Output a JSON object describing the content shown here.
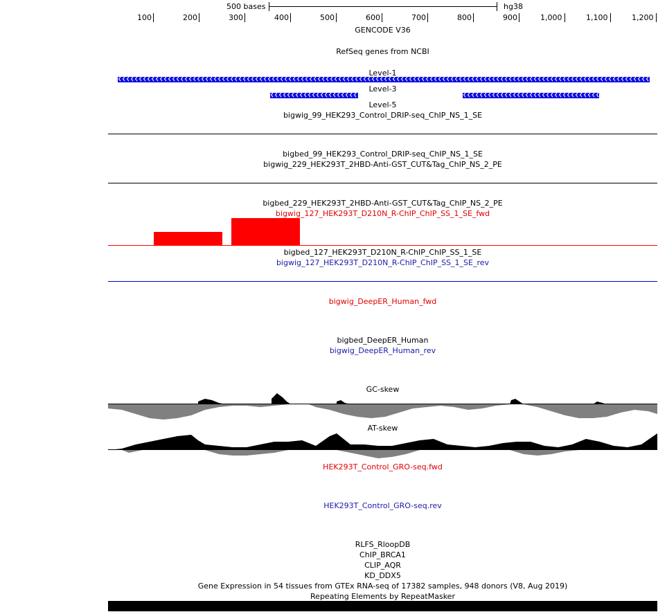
{
  "scale_bar": {
    "length_label": "500 bases",
    "assembly": "hg38"
  },
  "ruler": {
    "tick_labels": [
      "100",
      "200",
      "300",
      "400",
      "500",
      "600",
      "700",
      "800",
      "900",
      "1,000",
      "1,100",
      "1,200"
    ]
  },
  "tracks": {
    "gencode": "GENCODE V36",
    "refseq": "RefSeq genes from NCBI",
    "level1": "Level-1",
    "level3": "Level-3",
    "level5": "Level-5",
    "bigwig_99": "bigwig_99_HEK293_Control_DRIP-seq_ChIP_NS_1_SE",
    "bigbed_99": "bigbed_99_HEK293_Control_DRIP-seq_ChIP_NS_1_SE",
    "bigwig_229": "bigwig_229_HEK293T_2HBD-Anti-GST_CUT&Tag_ChIP_NS_2_PE",
    "bigbed_229": "bigbed_229_HEK293T_2HBD-Anti-GST_CUT&Tag_ChIP_NS_2_PE",
    "bigwig_127_fwd": "bigwig_127_HEK293T_D210N_R-ChIP_ChIP_SS_1_SE_fwd",
    "bigbed_127": "bigbed_127_HEK293T_D210N_R-ChIP_ChIP_SS_1_SE",
    "bigwig_127_rev": "bigwig_127_HEK293T_D210N_R-ChIP_ChIP_SS_1_SE_rev",
    "deeper_fwd": "bigwig_DeepER_Human_fwd",
    "deeper_bed": "bigbed_DeepER_Human",
    "deeper_rev": "bigwig_DeepER_Human_rev",
    "gc_skew": "GC-skew",
    "at_skew": "AT-skew",
    "gro_fwd": "HEK293T_Control_GRO-seq.fwd",
    "gro_rev": "HEK293T_Control_GRO-seq.rev",
    "rlfs": "RLFS_RloopDB",
    "chip_brca1": "ChIP_BRCA1",
    "clip_aqr": "CLIP_AQR",
    "kd_ddx5": "KD_DDX5",
    "gtex": "Gene Expression in 54 tissues from GTEx RNA-seq of 17382 samples, 948 donors (V8, Aug 2019)",
    "repeatmasker": "Repeating Elements by RepeatMasker"
  },
  "colors": {
    "fwd_strand": "#ff0000",
    "rev_strand": "#0000cc",
    "gene": "#1010e0",
    "skew_positive": "#000000",
    "skew_negative": "#808080"
  }
}
